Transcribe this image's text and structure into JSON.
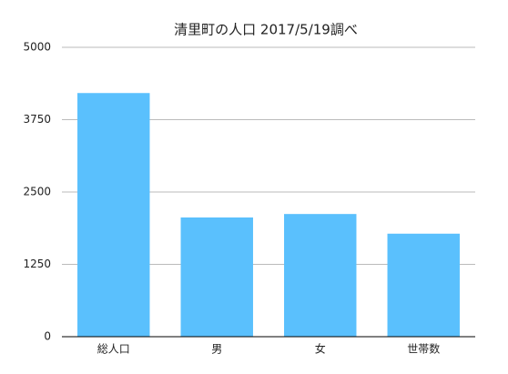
{
  "chart_data": {
    "type": "bar",
    "title": "清里町の人口 2017/5/19調べ",
    "categories": [
      "総人口",
      "男",
      "女",
      "世帯数"
    ],
    "values": [
      4210,
      2060,
      2120,
      1780
    ],
    "color": "#5ac0fd",
    "ylim": [
      0,
      5000
    ],
    "yticks": [
      0,
      1250,
      2500,
      3750,
      5000
    ],
    "grid": true
  }
}
